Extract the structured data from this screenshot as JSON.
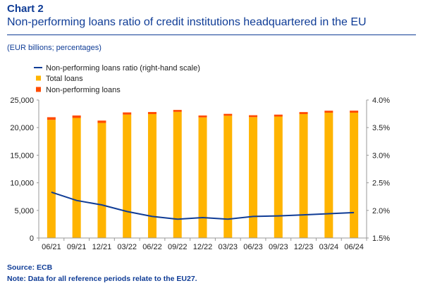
{
  "header": {
    "chart_number": "Chart 2",
    "title": "Non-performing loans ratio of credit institutions headquartered in the EU",
    "subtitle": "(EUR billions; percentages)"
  },
  "footer": {
    "source": "Source: ECB",
    "note": "Note: Data for all reference periods relate to the EU27."
  },
  "colors": {
    "total_loans": "#ffb400",
    "npl": "#ff4b00",
    "ratio_line": "#0f3c96",
    "axis": "#999999",
    "text": "#222222"
  },
  "chart_data": {
    "type": "bar",
    "categories": [
      "06/21",
      "09/21",
      "12/21",
      "03/22",
      "06/22",
      "09/22",
      "12/22",
      "03/23",
      "06/23",
      "09/23",
      "12/23",
      "03/24",
      "06/24"
    ],
    "series": [
      {
        "name": "Total loans",
        "type": "bar",
        "stack": "loans",
        "axis": "left",
        "values": [
          21400,
          21750,
          20850,
          22350,
          22450,
          22850,
          21850,
          22150,
          21900,
          22000,
          22450,
          22700,
          22700
        ]
      },
      {
        "name": "Non-performing loans",
        "type": "bar",
        "stack": "loans",
        "axis": "left",
        "values": [
          480,
          440,
          420,
          400,
          370,
          350,
          340,
          340,
          340,
          350,
          360,
          360,
          370
        ]
      },
      {
        "name": "Non-performing loans ratio (right-hand scale)",
        "type": "line",
        "axis": "right",
        "values": [
          2.33,
          2.18,
          2.1,
          1.98,
          1.89,
          1.84,
          1.87,
          1.84,
          1.89,
          1.9,
          1.92,
          1.94,
          1.96
        ]
      }
    ],
    "legend_order": [
      2,
      0,
      1
    ],
    "legend_position": "top-left",
    "y_left": {
      "min": 0,
      "max": 25000,
      "ticks": [
        0,
        5000,
        10000,
        15000,
        20000,
        25000
      ],
      "tick_labels": [
        "0",
        "5,000",
        "10,000",
        "15,000",
        "20,000",
        "25,000"
      ]
    },
    "y_right": {
      "min": 1.5,
      "max": 4.0,
      "ticks": [
        1.5,
        2.0,
        2.5,
        3.0,
        3.5,
        4.0
      ],
      "tick_labels": [
        "1.5%",
        "2.0%",
        "2.5%",
        "3.0%",
        "3.5%",
        "4.0%"
      ]
    },
    "grid": false
  }
}
